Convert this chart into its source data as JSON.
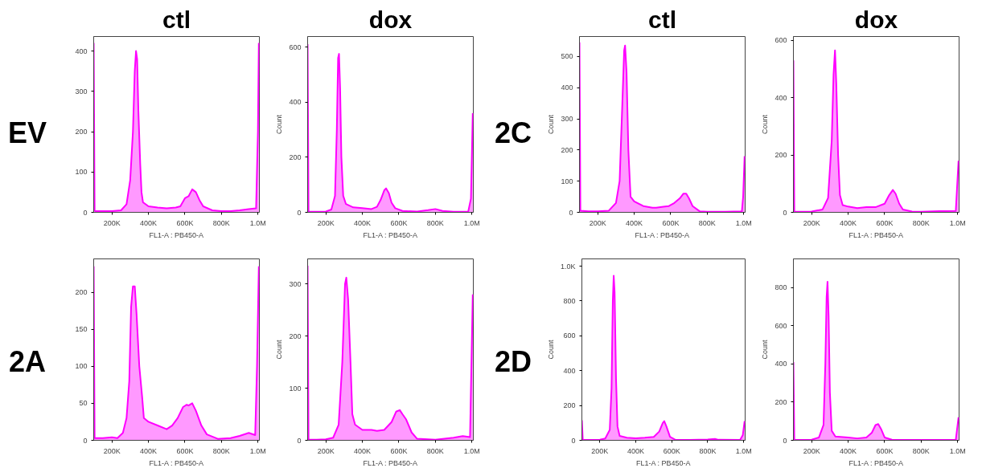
{
  "chart_data": [
    {
      "type": "area",
      "title": "ctl",
      "annotations": [
        "EV"
      ],
      "xlabel": "FL1-A : PB450-A",
      "xlim": [
        100000,
        1008000
      ],
      "ylim": [
        0,
        436
      ],
      "xticks": [
        {
          "value": 200000,
          "label": "200K"
        },
        {
          "value": 400000,
          "label": "400K"
        },
        {
          "value": 600000,
          "label": "600K"
        },
        {
          "value": 800000,
          "label": "800K"
        },
        {
          "value": 1000000,
          "label": "1.0M"
        }
      ],
      "yticks": [
        0,
        100,
        200,
        300,
        400
      ],
      "x": [
        100000,
        105000,
        110000,
        150000,
        200000,
        250000,
        280000,
        300000,
        315000,
        325000,
        332000,
        338000,
        345000,
        355000,
        362000,
        370000,
        400000,
        450000,
        500000,
        550000,
        575000,
        600000,
        620000,
        640000,
        660000,
        680000,
        700000,
        750000,
        800000,
        850000,
        900000,
        950000,
        990000,
        1000000,
        1005000
      ],
      "series": [
        {
          "color": "#ff00ff",
          "values": [
            420,
            5,
            3,
            3,
            3,
            5,
            20,
            80,
            200,
            350,
            400,
            380,
            250,
            120,
            50,
            25,
            15,
            12,
            10,
            12,
            15,
            35,
            40,
            57,
            50,
            30,
            15,
            5,
            3,
            3,
            5,
            8,
            10,
            200,
            420
          ]
        }
      ]
    },
    {
      "type": "area",
      "title": "dox",
      "xlabel": "FL1-A : PB450-A",
      "ylabel": "Count",
      "xlim": [
        100000,
        1008000
      ],
      "ylim": [
        0,
        638
      ],
      "xticks": [
        {
          "value": 200000,
          "label": "200K"
        },
        {
          "value": 400000,
          "label": "400K"
        },
        {
          "value": 600000,
          "label": "600K"
        },
        {
          "value": 800000,
          "label": "800K"
        },
        {
          "value": 1000000,
          "label": "1.0M"
        }
      ],
      "yticks": [
        0,
        200,
        400,
        600
      ],
      "x": [
        100000,
        105000,
        150000,
        200000,
        230000,
        250000,
        260000,
        267000,
        272000,
        278000,
        285000,
        295000,
        310000,
        350000,
        400000,
        450000,
        480000,
        500000,
        520000,
        530000,
        545000,
        560000,
        580000,
        620000,
        700000,
        760000,
        800000,
        840000,
        900000,
        980000,
        995000,
        1005000
      ],
      "series": [
        {
          "color": "#ff00ff",
          "values": [
            610,
            3,
            2,
            3,
            10,
            60,
            300,
            560,
            575,
            450,
            200,
            60,
            30,
            18,
            15,
            12,
            20,
            45,
            80,
            87,
            70,
            35,
            15,
            5,
            3,
            8,
            12,
            5,
            2,
            2,
            50,
            360
          ]
        }
      ]
    },
    {
      "type": "area",
      "title": "ctl",
      "annotations": [
        "2C"
      ],
      "xlabel": "FL1-A : PB450-A",
      "ylabel": "Count",
      "xlim": [
        100000,
        1008000
      ],
      "ylim": [
        0,
        564
      ],
      "xticks": [
        {
          "value": 200000,
          "label": "200K"
        },
        {
          "value": 400000,
          "label": "400K"
        },
        {
          "value": 600000,
          "label": "600K"
        },
        {
          "value": 800000,
          "label": "800K"
        },
        {
          "value": 1000000,
          "label": "1.0M"
        }
      ],
      "yticks": [
        0,
        100,
        200,
        300,
        400,
        500
      ],
      "x": [
        100000,
        105000,
        150000,
        200000,
        260000,
        300000,
        320000,
        335000,
        345000,
        350000,
        358000,
        368000,
        380000,
        400000,
        450000,
        500000,
        520000,
        560000,
        590000,
        620000,
        650000,
        670000,
        685000,
        700000,
        720000,
        760000,
        800000,
        900000,
        990000,
        997000,
        1005000
      ],
      "series": [
        {
          "color": "#ff00ff",
          "values": [
            545,
            5,
            3,
            3,
            5,
            30,
            100,
            350,
            520,
            535,
            450,
            200,
            50,
            35,
            20,
            15,
            15,
            18,
            20,
            30,
            45,
            60,
            60,
            45,
            20,
            3,
            2,
            2,
            3,
            50,
            180
          ]
        }
      ]
    },
    {
      "type": "area",
      "title": "dox",
      "xlabel": "FL1-A : PB450-A",
      "ylabel": "Count",
      "xlim": [
        100000,
        1008000
      ],
      "ylim": [
        0,
        613
      ],
      "xticks": [
        {
          "value": 200000,
          "label": "200K"
        },
        {
          "value": 400000,
          "label": "400K"
        },
        {
          "value": 600000,
          "label": "600K"
        },
        {
          "value": 800000,
          "label": "800K"
        },
        {
          "value": 1000000,
          "label": "1.0M"
        }
      ],
      "yticks": [
        0,
        200,
        400,
        600
      ],
      "x": [
        100000,
        105000,
        150000,
        200000,
        260000,
        290000,
        310000,
        320000,
        328000,
        335000,
        345000,
        355000,
        370000,
        400000,
        450000,
        500000,
        550000,
        600000,
        625000,
        645000,
        660000,
        680000,
        700000,
        750000,
        800000,
        900000,
        990000,
        1005000
      ],
      "series": [
        {
          "color": "#ff00ff",
          "values": [
            530,
            3,
            2,
            3,
            10,
            50,
            250,
            480,
            565,
            450,
            200,
            60,
            25,
            20,
            15,
            18,
            18,
            30,
            60,
            78,
            65,
            30,
            10,
            3,
            2,
            4,
            5,
            180
          ]
        }
      ]
    },
    {
      "type": "area",
      "annotations": [
        "2A"
      ],
      "xlabel": "FL1-A : PB450-A",
      "xlim": [
        100000,
        1008000
      ],
      "ylim": [
        0,
        245
      ],
      "xticks": [
        {
          "value": 200000,
          "label": "200K"
        },
        {
          "value": 400000,
          "label": "400K"
        },
        {
          "value": 600000,
          "label": "600K"
        },
        {
          "value": 800000,
          "label": "800K"
        },
        {
          "value": 1000000,
          "label": "1.0M"
        }
      ],
      "yticks": [
        0,
        50,
        100,
        150,
        200
      ],
      "x": [
        100000,
        105000,
        150000,
        200000,
        230000,
        260000,
        280000,
        295000,
        305000,
        315000,
        325000,
        335000,
        350000,
        365000,
        375000,
        400000,
        450000,
        500000,
        530000,
        560000,
        590000,
        610000,
        620000,
        640000,
        660000,
        690000,
        720000,
        750000,
        780000,
        850000,
        900000,
        950000,
        985000,
        995000,
        1005000
      ],
      "series": [
        {
          "color": "#ff00ff",
          "values": [
            235,
            3,
            3,
            4,
            3,
            10,
            30,
            80,
            180,
            208,
            208,
            170,
            100,
            60,
            30,
            25,
            20,
            15,
            20,
            30,
            45,
            48,
            47,
            50,
            40,
            20,
            8,
            5,
            2,
            3,
            6,
            10,
            7,
            100,
            235
          ]
        }
      ]
    },
    {
      "type": "area",
      "xlabel": "FL1-A : PB450-A",
      "ylabel": "Count",
      "xlim": [
        100000,
        1008000
      ],
      "ylim": [
        0,
        348
      ],
      "xticks": [
        {
          "value": 200000,
          "label": "200K"
        },
        {
          "value": 400000,
          "label": "400K"
        },
        {
          "value": 600000,
          "label": "600K"
        },
        {
          "value": 800000,
          "label": "800K"
        },
        {
          "value": 1000000,
          "label": "1.0M"
        }
      ],
      "yticks": [
        0,
        100,
        200,
        300
      ],
      "x": [
        100000,
        105000,
        150000,
        200000,
        240000,
        270000,
        290000,
        305000,
        312000,
        322000,
        335000,
        345000,
        360000,
        400000,
        450000,
        480000,
        520000,
        560000,
        585000,
        605000,
        620000,
        640000,
        670000,
        700000,
        800000,
        900000,
        950000,
        990000,
        1005000
      ],
      "series": [
        {
          "color": "#ff00ff",
          "values": [
            335,
            1,
            1,
            2,
            5,
            30,
            150,
            300,
            312,
            270,
            150,
            50,
            30,
            20,
            20,
            18,
            20,
            35,
            55,
            58,
            50,
            40,
            15,
            3,
            1,
            5,
            8,
            6,
            280
          ]
        }
      ]
    },
    {
      "type": "area",
      "annotations": [
        "2D"
      ],
      "xlabel": "FL1-A : PB450-A",
      "ylabel": "Count",
      "xlim": [
        100000,
        1008000
      ],
      "ylim": [
        0,
        1042
      ],
      "xticks": [
        {
          "value": 200000,
          "label": "200K"
        },
        {
          "value": 400000,
          "label": "400K"
        },
        {
          "value": 600000,
          "label": "600K"
        },
        {
          "value": 800000,
          "label": "800K"
        },
        {
          "value": 1000000,
          "label": "1.0M"
        }
      ],
      "yticks": [
        0,
        200,
        400,
        600,
        800,
        {
          "value": 1000,
          "label": "1.0K"
        }
      ],
      "x": [
        100000,
        105000,
        150000,
        200000,
        230000,
        255000,
        265000,
        272000,
        277000,
        282000,
        290000,
        298000,
        310000,
        350000,
        400000,
        450000,
        500000,
        530000,
        550000,
        558000,
        570000,
        590000,
        620000,
        700000,
        800000,
        840000,
        860000,
        980000,
        995000,
        1005000
      ],
      "series": [
        {
          "color": "#ff00ff",
          "values": [
            115,
            3,
            2,
            3,
            10,
            60,
            300,
            800,
            945,
            850,
            350,
            80,
            25,
            15,
            12,
            15,
            20,
            50,
            100,
            110,
            80,
            20,
            3,
            2,
            5,
            8,
            3,
            2,
            30,
            110
          ]
        }
      ]
    },
    {
      "type": "area",
      "xlabel": "FL1-A : PB450-A",
      "ylabel": "Count",
      "xlim": [
        100000,
        1008000
      ],
      "ylim": [
        0,
        950
      ],
      "xticks": [
        {
          "value": 200000,
          "label": "200K"
        },
        {
          "value": 400000,
          "label": "400K"
        },
        {
          "value": 600000,
          "label": "600K"
        },
        {
          "value": 800000,
          "label": "800K"
        },
        {
          "value": 1000000,
          "label": "1.0M"
        }
      ],
      "yticks": [
        0,
        200,
        400,
        600,
        800
      ],
      "x": [
        100000,
        105000,
        150000,
        200000,
        240000,
        265000,
        275000,
        282000,
        287000,
        293000,
        300000,
        310000,
        330000,
        400000,
        450000,
        500000,
        530000,
        550000,
        565000,
        580000,
        600000,
        640000,
        800000,
        900000,
        990000,
        1005000
      ],
      "series": [
        {
          "color": "#ff00ff",
          "values": [
            410,
            3,
            2,
            3,
            15,
            80,
            400,
            750,
            830,
            650,
            250,
            50,
            20,
            15,
            10,
            15,
            40,
            80,
            85,
            60,
            15,
            3,
            2,
            2,
            3,
            120
          ]
        }
      ]
    }
  ]
}
